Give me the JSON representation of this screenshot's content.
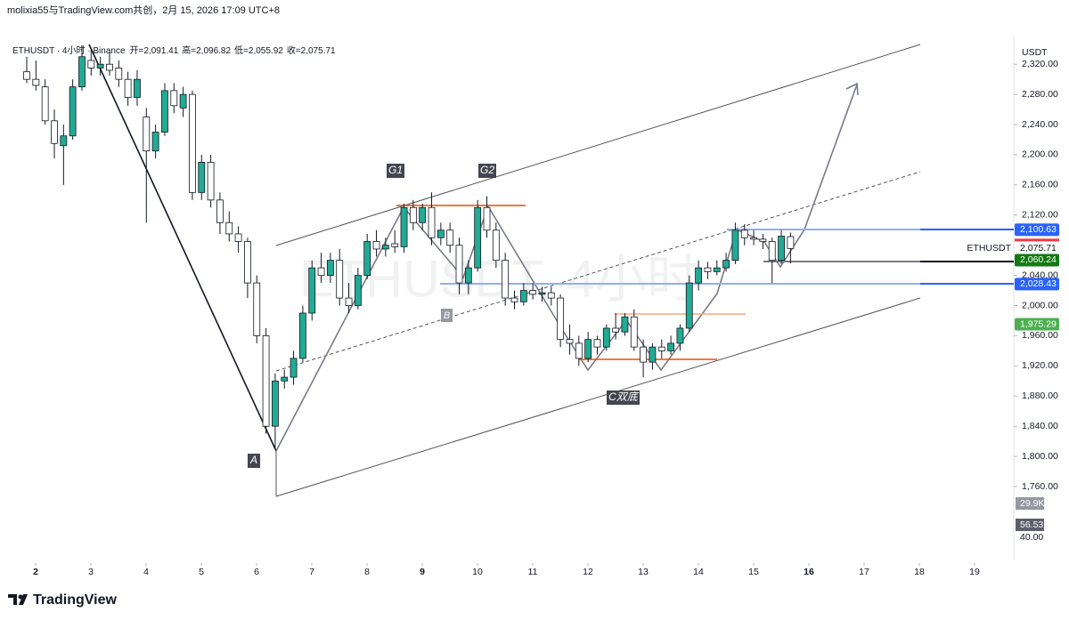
{
  "header": "molixia55与TradingView.com共创，2月 15, 2026 17:09 UTC+8",
  "footer": "TradingView",
  "chart_data": {
    "type": "candlestick",
    "symbol_line": "ETHUSDT · 4小时 · Binance",
    "ohlc_text": [
      "开=2,091.41",
      "高=2,096.82",
      "低=2,055.92",
      "收=2,075.71"
    ],
    "watermark": "ETHUSDT, 4小时",
    "currency": "USDT",
    "up_color": "#22ab94",
    "down_color": "#ffffff",
    "ylim": [
      1668,
      2358
    ],
    "yticks": [
      {
        "value": 2320,
        "label": "2,320.00"
      },
      {
        "value": 2280,
        "label": "2,280.00"
      },
      {
        "value": 2240,
        "label": "2,240.00"
      },
      {
        "value": 2200,
        "label": "2,200.00"
      },
      {
        "value": 2160,
        "label": "2,160.00"
      },
      {
        "value": 2120,
        "label": "2,120.00"
      },
      {
        "value": 2040,
        "label": "2,040.00"
      },
      {
        "value": 2000,
        "label": "2,000.00"
      },
      {
        "value": 1960,
        "label": "1,960.00"
      },
      {
        "value": 1920,
        "label": "1,920.00"
      },
      {
        "value": 1880,
        "label": "1,880.00"
      },
      {
        "value": 1840,
        "label": "1,840.00"
      },
      {
        "value": 1800,
        "label": "1,800.00"
      },
      {
        "value": 1760,
        "label": "1,760.00"
      }
    ],
    "xticks": [
      2,
      3,
      4,
      5,
      6,
      7,
      8,
      9,
      10,
      11,
      12,
      13,
      14,
      15,
      16,
      17,
      18,
      19
    ],
    "open": [
      2310,
      2300,
      2290,
      2245,
      2212,
      2225,
      2290,
      2325,
      2315,
      2320,
      2315,
      2300,
      2276,
      2250,
      2205,
      2230,
      2285,
      2262,
      2280,
      2150,
      2190,
      2140,
      2110,
      2095,
      2085,
      2030,
      1960,
      1840,
      1900,
      1905,
      1930,
      1990,
      2050,
      2040,
      2060,
      2010,
      2000,
      2040,
      2085,
      2075,
      2082,
      2078,
      2130,
      2110,
      2130,
      2090,
      2100,
      2080,
      2030,
      2050,
      2130,
      2100,
      2060,
      2010,
      2005,
      2020,
      2015,
      2017,
      2010,
      1955,
      1950,
      1930,
      1955,
      1945,
      1970,
      1965,
      1985,
      1945,
      1925,
      1945,
      1940,
      1950,
      1970,
      2030,
      2050,
      2045,
      2050,
      2060,
      2100,
      2090,
      2088,
      2085,
      2060,
      2091.41
    ],
    "high": [
      2330,
      2325,
      2300,
      2260,
      2240,
      2300,
      2345,
      2340,
      2330,
      2335,
      2325,
      2310,
      2312,
      2262,
      2240,
      2295,
      2295,
      2290,
      2285,
      2200,
      2200,
      2150,
      2125,
      2105,
      2090,
      2040,
      1970,
      1910,
      1915,
      1940,
      2000,
      2060,
      2070,
      2070,
      2075,
      2030,
      2050,
      2095,
      2100,
      2090,
      2100,
      2135,
      2140,
      2135,
      2150,
      2110,
      2110,
      2090,
      2060,
      2140,
      2145,
      2110,
      2070,
      2020,
      2030,
      2030,
      2025,
      2025,
      2015,
      1975,
      1960,
      1965,
      1960,
      1975,
      1990,
      1990,
      1995,
      1955,
      1950,
      1955,
      1960,
      1975,
      2040,
      2060,
      2058,
      2060,
      2070,
      2110,
      2108,
      2100,
      2095,
      2090,
      2100,
      2096.82
    ],
    "low": [
      2295,
      2285,
      2240,
      2195,
      2160,
      2220,
      2285,
      2305,
      2305,
      2305,
      2290,
      2265,
      2265,
      2110,
      2195,
      2225,
      2255,
      2250,
      2140,
      2140,
      2130,
      2095,
      2085,
      2070,
      2010,
      1950,
      1830,
      1810,
      1890,
      1895,
      1925,
      1980,
      2030,
      2030,
      2000,
      1990,
      1995,
      2035,
      2065,
      2065,
      2070,
      2070,
      2100,
      2100,
      2080,
      2080,
      2070,
      2015,
      2015,
      2045,
      2090,
      2050,
      2000,
      1995,
      2000,
      2008,
      2005,
      2000,
      1945,
      1935,
      1920,
      1925,
      1935,
      1940,
      1955,
      1960,
      1940,
      1905,
      1915,
      1930,
      1935,
      1940,
      1965,
      2020,
      2035,
      2040,
      2045,
      2055,
      2080,
      2080,
      2075,
      2030,
      2055,
      2055.92
    ],
    "close": [
      2300,
      2292,
      2245,
      2215,
      2225,
      2290,
      2330,
      2315,
      2320,
      2312,
      2300,
      2276,
      2300,
      2205,
      2230,
      2285,
      2265,
      2280,
      2150,
      2190,
      2140,
      2110,
      2095,
      2085,
      2030,
      1960,
      1840,
      1900,
      1905,
      1930,
      1990,
      2050,
      2040,
      2060,
      2010,
      2000,
      2040,
      2085,
      2075,
      2080,
      2078,
      2130,
      2110,
      2130,
      2090,
      2100,
      2080,
      2030,
      2050,
      2130,
      2100,
      2060,
      2010,
      2005,
      2020,
      2015,
      2017,
      2010,
      1955,
      1950,
      1930,
      1955,
      1945,
      1970,
      1965,
      1985,
      1945,
      1925,
      1945,
      1940,
      1950,
      1970,
      2030,
      2050,
      2045,
      2050,
      2060,
      2100,
      2090,
      2088,
      2085,
      2060,
      2092,
      2075.71
    ],
    "price_labels": [
      {
        "value": 2100.63,
        "label": "2,100.63",
        "color": "#2962ff"
      },
      {
        "value": 2075.71,
        "label": "2,075.71",
        "color": "#ffffff"
      },
      {
        "value": 2060.24,
        "label": "2,060.24",
        "color": "#137a13"
      },
      {
        "value": 2028.43,
        "label": "2,028.43",
        "color": "#2962ff"
      },
      {
        "value": 1975.29,
        "label": "1,975.29",
        "color": "#4caf50"
      }
    ],
    "last_price_symbol": "ETHUSDT",
    "indicator_labels": [
      {
        "value": 29900,
        "label": "29.9K"
      },
      56.53,
      {
        "value": 40,
        "label": "40.00"
      }
    ],
    "annotations": [
      "G1",
      "G2",
      "A",
      "B",
      "C双底"
    ]
  }
}
